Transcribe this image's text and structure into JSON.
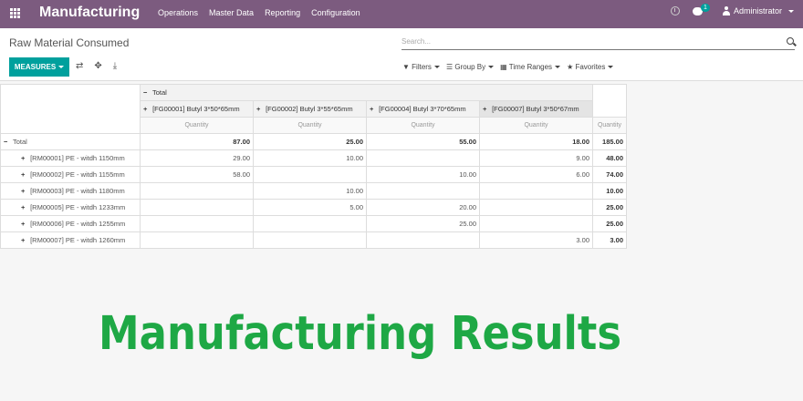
{
  "navbar": {
    "app_title": "Manufacturing",
    "menu": [
      "Operations",
      "Master Data",
      "Reporting",
      "Configuration"
    ],
    "chat_count": "1",
    "user": "Administrator"
  },
  "control_panel": {
    "title": "Raw Material Consumed",
    "search_placeholder": "Search...",
    "measures_label": "MEASURES",
    "filters_label": "Filters",
    "group_by_label": "Group By",
    "time_ranges_label": "Time Ranges",
    "favorites_label": "Favorites"
  },
  "pivot": {
    "col_total_label": "Total",
    "columns": [
      "[FG00001] Butyl 3*50*65mm",
      "[FG00002] Butyl 3*55*65mm",
      "[FG00004] Butyl 3*70*65mm",
      "[FG00007] Butyl 3*50*67mm"
    ],
    "measure_label": "Quantity",
    "row_total_label": "Total",
    "total_row": [
      "87.00",
      "25.00",
      "55.00",
      "18.00",
      "185.00"
    ],
    "rows": [
      {
        "label": "[RM00001] PE - witdh 1150mm",
        "values": [
          "29.00",
          "10.00",
          "",
          "9.00",
          "48.00"
        ]
      },
      {
        "label": "[RM00002] PE - witdh 1155mm",
        "values": [
          "58.00",
          "",
          "10.00",
          "6.00",
          "74.00"
        ]
      },
      {
        "label": "[RM00003] PE - witdh 1180mm",
        "values": [
          "",
          "10.00",
          "",
          "",
          "10.00"
        ]
      },
      {
        "label": "[RM00005] PE - witdh 1233mm",
        "values": [
          "",
          "5.00",
          "20.00",
          "",
          "25.00"
        ]
      },
      {
        "label": "[RM00006] PE - witdh 1255mm",
        "values": [
          "",
          "",
          "25.00",
          "",
          "25.00"
        ]
      },
      {
        "label": "[RM00007] PE - witdh 1260mm",
        "values": [
          "",
          "",
          "",
          "3.00",
          "3.00"
        ]
      }
    ]
  },
  "banner_text": "Manufacturing Results",
  "colors": {
    "navbar": "#7c5b7f",
    "accent": "#00a09d",
    "banner": "#1ea845"
  }
}
